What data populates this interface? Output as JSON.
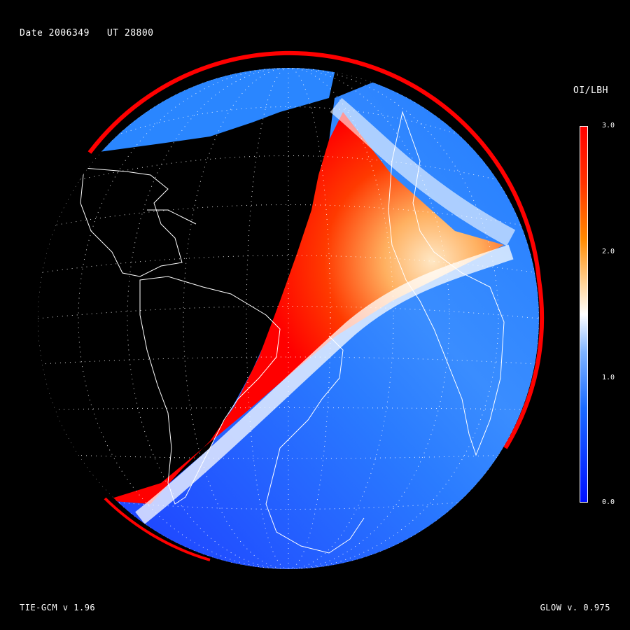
{
  "header": {
    "date_label": "Date 2006349   UT 28800"
  },
  "footer": {
    "model_label": "TIE-GCM v 1.96",
    "glow_label": "GLOW v. 0.975"
  },
  "colorbar": {
    "title": "OI/LBH",
    "ticks": [
      "3.0",
      "2.0",
      "1.0",
      "0.0"
    ],
    "colors": {
      "low": "#0010ff",
      "mid": "#ffffff",
      "high": "#ff0000"
    }
  },
  "map": {
    "projection": "orthographic globe",
    "graticule": "dotted",
    "coastlines": "white",
    "night_side": "black"
  }
}
